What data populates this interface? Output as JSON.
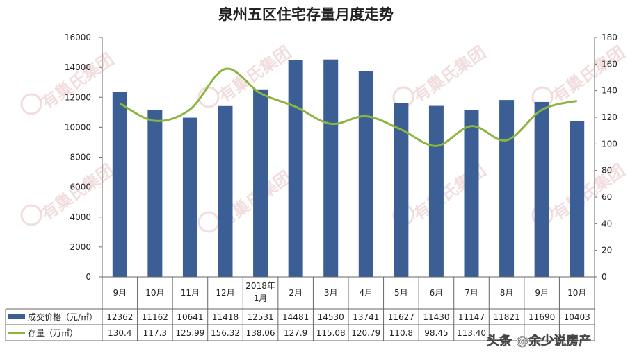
{
  "chart_data": {
    "type": "bar",
    "title": "泉州五区住宅存量月度走势",
    "categories": [
      "9月",
      "10月",
      "11月",
      "12月",
      "2018年1月",
      "2月",
      "3月",
      "4月",
      "5月",
      "6月",
      "7月",
      "8月",
      "9月",
      "10月"
    ],
    "category_lines": [
      [
        "9月"
      ],
      [
        "10月"
      ],
      [
        "11月"
      ],
      [
        "12月"
      ],
      [
        "2018年",
        "1月"
      ],
      [
        "2月"
      ],
      [
        "3月"
      ],
      [
        "4月"
      ],
      [
        "5月"
      ],
      [
        "6月"
      ],
      [
        "7月"
      ],
      [
        "8月"
      ],
      [
        "9月"
      ],
      [
        "10月"
      ]
    ],
    "series": [
      {
        "name": "成交价格（元/㎡）",
        "kind": "bar",
        "axis": "left",
        "color": "#3b5f94",
        "values": [
          12362,
          11162,
          10641,
          11418,
          12531,
          14481,
          14530,
          13741,
          11627,
          11430,
          11147,
          11821,
          11690,
          10403
        ]
      },
      {
        "name": "存量（万㎡）",
        "kind": "line",
        "axis": "right",
        "color": "#8db43e",
        "values": [
          130.4,
          117.3,
          125.99,
          156.32,
          138.06,
          127.9,
          115.08,
          120.79,
          110.8,
          98.45,
          113.4,
          102.76,
          125.57,
          132.36
        ],
        "table_labels": [
          "130.4",
          "117.3",
          "125.99",
          "156.32",
          "138.06",
          "127.9",
          "115.08",
          "120.79",
          "110.8",
          "98.45",
          "113.40",
          "",
          "",
          ""
        ]
      }
    ],
    "ylim_left": [
      0,
      16000
    ],
    "yticks_left": [
      0,
      2000,
      4000,
      6000,
      8000,
      10000,
      12000,
      14000,
      16000
    ],
    "ylim_right": [
      0,
      180
    ],
    "yticks_right": [
      0,
      20,
      40,
      60,
      80,
      100,
      120,
      140,
      160,
      180
    ],
    "grid": false,
    "legend": "data-table"
  },
  "watermark": {
    "brand": "有巢氏集团",
    "credit": "头条 @余少说房产"
  }
}
